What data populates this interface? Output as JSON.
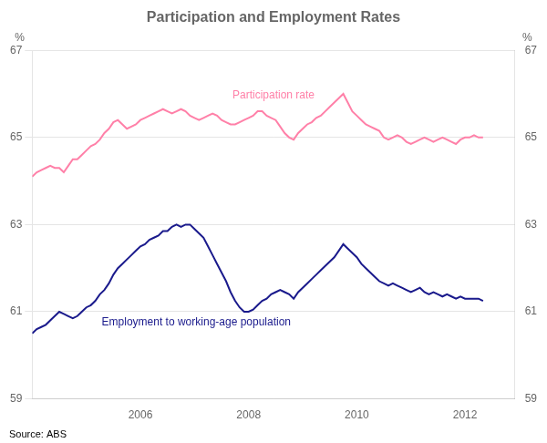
{
  "chart_data": {
    "type": "line",
    "title": "Participation and Employment Rates",
    "source": "Source: ABS",
    "ylabel": "%",
    "y2label": "%",
    "xlim": [
      2004.0,
      2012.92
    ],
    "xticks": [
      2006,
      2008,
      2010,
      2012
    ],
    "ylim": [
      59,
      67
    ],
    "yticks": [
      59,
      61,
      63,
      65,
      67
    ],
    "y2lim": [
      59,
      67
    ],
    "y2ticks": [
      59,
      61,
      63,
      65,
      67
    ],
    "grid": "y",
    "x": [
      2004,
      2004.0833333333,
      2004.1666666667,
      2004.25,
      2004.3333333333,
      2004.4166666667,
      2004.5,
      2004.5833333333,
      2004.6666666667,
      2004.75,
      2004.8333333333,
      2004.9166666667,
      2005,
      2005.0833333333,
      2005.1666666667,
      2005.25,
      2005.3333333333,
      2005.4166666667,
      2005.5,
      2005.5833333333,
      2005.6666666667,
      2005.75,
      2005.8333333333,
      2005.9166666667,
      2006,
      2006.0833333333,
      2006.1666666667,
      2006.25,
      2006.3333333333,
      2006.4166666667,
      2006.5,
      2006.5833333333,
      2006.6666666667,
      2006.75,
      2006.8333333333,
      2006.9166666667,
      2007,
      2007.0833333333,
      2007.1666666667,
      2007.25,
      2007.3333333333,
      2007.4166666667,
      2007.5,
      2007.5833333333,
      2007.6666666667,
      2007.75,
      2007.8333333333,
      2007.9166666667,
      2008,
      2008.0833333333,
      2008.1666666667,
      2008.25,
      2008.3333333333,
      2008.4166666667,
      2008.5,
      2008.5833333333,
      2008.6666666667,
      2008.75,
      2008.8333333333,
      2008.9166666667,
      2009,
      2009.0833333333,
      2009.1666666667,
      2009.25,
      2009.3333333333,
      2009.4166666667,
      2009.5,
      2009.5833333333,
      2009.6666666667,
      2009.75,
      2009.8333333333,
      2009.9166666667,
      2010,
      2010.0833333333,
      2010.1666666667,
      2010.25,
      2010.3333333333,
      2010.4166666667,
      2010.5,
      2010.5833333333,
      2010.6666666667,
      2010.75,
      2010.8333333333,
      2010.9166666667,
      2011,
      2011.0833333333,
      2011.1666666667,
      2011.25,
      2011.3333333333,
      2011.4166666667,
      2011.5,
      2011.5833333333,
      2011.6666666667,
      2011.75,
      2011.8333333333,
      2011.9166666667,
      2012,
      2012.0833333333,
      2012.1666666667,
      2012.25,
      2012.3333333333
    ],
    "series": [
      {
        "name": "Participation rate",
        "color": "#FF80A8",
        "values": [
          64.1,
          64.2,
          64.25,
          64.3,
          64.35,
          64.3,
          64.3,
          64.2,
          64.35,
          64.5,
          64.5,
          64.6,
          64.7,
          64.8,
          64.85,
          64.95,
          65.1,
          65.2,
          65.35,
          65.4,
          65.3,
          65.2,
          65.25,
          65.3,
          65.4,
          65.45,
          65.5,
          65.55,
          65.6,
          65.65,
          65.6,
          65.55,
          65.6,
          65.65,
          65.6,
          65.5,
          65.45,
          65.4,
          65.45,
          65.5,
          65.55,
          65.5,
          65.4,
          65.35,
          65.3,
          65.3,
          65.35,
          65.4,
          65.45,
          65.5,
          65.6,
          65.6,
          65.5,
          65.45,
          65.4,
          65.25,
          65.1,
          65.0,
          64.95,
          65.1,
          65.2,
          65.3,
          65.35,
          65.45,
          65.5,
          65.6,
          65.7,
          65.8,
          65.9,
          66.0,
          65.8,
          65.6,
          65.5,
          65.4,
          65.3,
          65.25,
          65.2,
          65.15,
          65.0,
          64.95,
          65.0,
          65.05,
          65.0,
          64.9,
          64.85,
          64.9,
          64.95,
          65.0,
          64.95,
          64.9,
          64.95,
          65.0,
          64.95,
          64.9,
          64.85,
          64.95,
          65.0,
          65.0,
          65.05,
          65.0,
          65.0
        ]
      },
      {
        "name": "Employment to working-age population",
        "color": "#1A1A8C",
        "values": [
          60.5,
          60.6,
          60.65,
          60.7,
          60.8,
          60.9,
          61.0,
          60.95,
          60.9,
          60.85,
          60.9,
          61.0,
          61.1,
          61.15,
          61.25,
          61.4,
          61.5,
          61.65,
          61.85,
          62.0,
          62.1,
          62.2,
          62.3,
          62.4,
          62.5,
          62.55,
          62.65,
          62.7,
          62.75,
          62.85,
          62.85,
          62.95,
          63.0,
          62.95,
          63.0,
          63.0,
          62.9,
          62.8,
          62.7,
          62.5,
          62.3,
          62.1,
          61.9,
          61.7,
          61.45,
          61.25,
          61.1,
          61.0,
          61.0,
          61.05,
          61.15,
          61.25,
          61.3,
          61.4,
          61.45,
          61.5,
          61.45,
          61.4,
          61.3,
          61.45,
          61.55,
          61.65,
          61.75,
          61.85,
          61.95,
          62.05,
          62.15,
          62.25,
          62.4,
          62.55,
          62.45,
          62.35,
          62.25,
          62.1,
          62.0,
          61.9,
          61.8,
          61.7,
          61.65,
          61.6,
          61.65,
          61.6,
          61.55,
          61.5,
          61.45,
          61.5,
          61.55,
          61.45,
          61.4,
          61.45,
          61.4,
          61.35,
          61.4,
          61.35,
          61.3,
          61.35,
          61.3,
          61.3,
          61.3,
          61.3,
          61.25
        ]
      }
    ]
  }
}
